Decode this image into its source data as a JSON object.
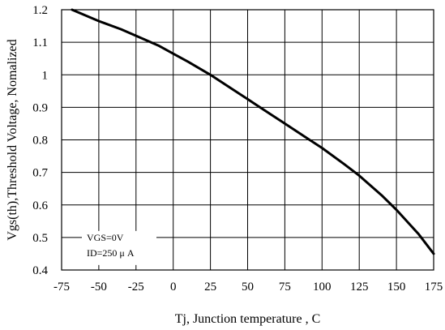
{
  "chart_data": {
    "type": "line",
    "xlabel": "Tj, Junction temperature , C",
    "ylabel": "Vgs(th),Threshold Voltage, Nomalized",
    "xlim": [
      -75,
      175
    ],
    "ylim": [
      0.4,
      1.2
    ],
    "x_ticks": [
      "-75",
      "-50",
      "-25",
      "0",
      "25",
      "50",
      "75",
      "100",
      "125",
      "150",
      "175"
    ],
    "y_ticks": [
      "0.4",
      "0.5",
      "0.6",
      "0.7",
      "0.8",
      "0.9",
      "1",
      "1.1",
      "1.2"
    ],
    "x_tick_values": [
      -75,
      -50,
      -25,
      0,
      25,
      50,
      75,
      100,
      125,
      150,
      175
    ],
    "y_tick_values": [
      0.4,
      0.5,
      0.6,
      0.7,
      0.8,
      0.9,
      1.0,
      1.1,
      1.2
    ],
    "grid": true,
    "annotations": [
      "VGS=0V",
      "ID=250 μ A"
    ],
    "series": [
      {
        "x": [
          -68,
          -50,
          -35,
          -25,
          -10,
          0,
          10,
          25,
          40,
          50,
          65,
          75,
          90,
          100,
          115,
          125,
          140,
          150,
          165,
          175
        ],
        "y": [
          1.2,
          1.165,
          1.14,
          1.12,
          1.09,
          1.065,
          1.04,
          1.0,
          0.955,
          0.925,
          0.88,
          0.85,
          0.805,
          0.775,
          0.725,
          0.69,
          0.63,
          0.585,
          0.51,
          0.45
        ]
      }
    ],
    "line_color": "#000000"
  }
}
